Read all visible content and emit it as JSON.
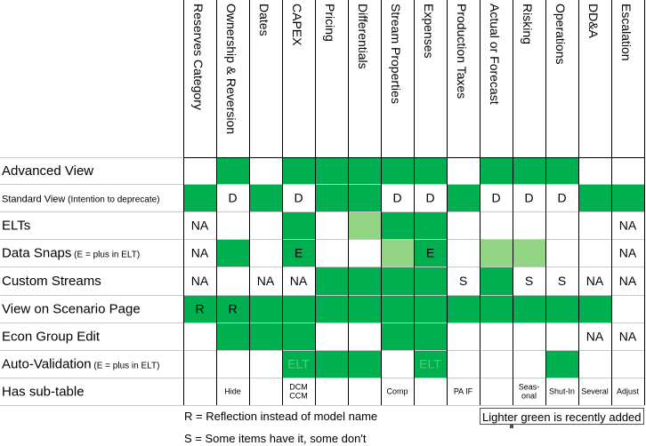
{
  "columns": [
    "Reserves Category",
    "Ownership & Reversion",
    "Dates",
    "CAPEX",
    "Pricing",
    "Differentials",
    "Stream Properties",
    "Expenses",
    "Production Taxes",
    "Actual or Forecast",
    "Risking",
    "Operations",
    "DD&A",
    "Escalation"
  ],
  "colors": {
    "green": "#00b050",
    "light_green": "#92d685",
    "white": "#ffffff",
    "ghost_text": "#5cc870"
  },
  "rows": [
    {
      "label": "Advanced View",
      "note": "",
      "cells": [
        {
          "f": "w",
          "t": ""
        },
        {
          "f": "g",
          "t": ""
        },
        {
          "f": "w",
          "t": ""
        },
        {
          "f": "g",
          "t": ""
        },
        {
          "f": "g",
          "t": ""
        },
        {
          "f": "g",
          "t": ""
        },
        {
          "f": "g",
          "t": ""
        },
        {
          "f": "g",
          "t": ""
        },
        {
          "f": "w",
          "t": ""
        },
        {
          "f": "g",
          "t": ""
        },
        {
          "f": "g",
          "t": ""
        },
        {
          "f": "g",
          "t": ""
        },
        {
          "f": "w",
          "t": ""
        },
        {
          "f": "w",
          "t": ""
        }
      ]
    },
    {
      "label": "Standard View",
      "note": "(Intention to deprecate)",
      "cells": [
        {
          "f": "g",
          "t": ""
        },
        {
          "f": "w",
          "t": "D"
        },
        {
          "f": "g",
          "t": ""
        },
        {
          "f": "w",
          "t": "D"
        },
        {
          "f": "g",
          "t": ""
        },
        {
          "f": "g",
          "t": ""
        },
        {
          "f": "w",
          "t": "D"
        },
        {
          "f": "w",
          "t": "D"
        },
        {
          "f": "g",
          "t": ""
        },
        {
          "f": "w",
          "t": "D"
        },
        {
          "f": "w",
          "t": "D"
        },
        {
          "f": "w",
          "t": "D"
        },
        {
          "f": "g",
          "t": ""
        },
        {
          "f": "g",
          "t": ""
        }
      ]
    },
    {
      "label": "ELTs",
      "note": "",
      "cells": [
        {
          "f": "w",
          "t": "NA"
        },
        {
          "f": "w",
          "t": ""
        },
        {
          "f": "w",
          "t": ""
        },
        {
          "f": "g",
          "t": ""
        },
        {
          "f": "w",
          "t": ""
        },
        {
          "f": "l",
          "t": ""
        },
        {
          "f": "g",
          "t": ""
        },
        {
          "f": "g",
          "t": ""
        },
        {
          "f": "w",
          "t": ""
        },
        {
          "f": "w",
          "t": ""
        },
        {
          "f": "w",
          "t": ""
        },
        {
          "f": "w",
          "t": ""
        },
        {
          "f": "w",
          "t": ""
        },
        {
          "f": "w",
          "t": "NA"
        }
      ]
    },
    {
      "label": "Data Snaps",
      "note": "(E = plus in ELT)",
      "cells": [
        {
          "f": "w",
          "t": "NA"
        },
        {
          "f": "g",
          "t": ""
        },
        {
          "f": "w",
          "t": ""
        },
        {
          "f": "g",
          "t": "E"
        },
        {
          "f": "w",
          "t": ""
        },
        {
          "f": "w",
          "t": ""
        },
        {
          "f": "l",
          "t": ""
        },
        {
          "f": "g",
          "t": "E"
        },
        {
          "f": "w",
          "t": ""
        },
        {
          "f": "l",
          "t": ""
        },
        {
          "f": "l",
          "t": ""
        },
        {
          "f": "w",
          "t": ""
        },
        {
          "f": "w",
          "t": ""
        },
        {
          "f": "w",
          "t": "NA"
        }
      ]
    },
    {
      "label": "Custom Streams",
      "note": "",
      "cells": [
        {
          "f": "w",
          "t": "NA"
        },
        {
          "f": "w",
          "t": ""
        },
        {
          "f": "w",
          "t": "NA"
        },
        {
          "f": "w",
          "t": "NA"
        },
        {
          "f": "g",
          "t": ""
        },
        {
          "f": "g",
          "t": ""
        },
        {
          "f": "g",
          "t": ""
        },
        {
          "f": "g",
          "t": ""
        },
        {
          "f": "w",
          "t": "S"
        },
        {
          "f": "g",
          "t": ""
        },
        {
          "f": "w",
          "t": "S"
        },
        {
          "f": "w",
          "t": "S"
        },
        {
          "f": "w",
          "t": "NA"
        },
        {
          "f": "w",
          "t": "NA"
        }
      ]
    },
    {
      "label": "View on Scenario Page",
      "note": "",
      "cells": [
        {
          "f": "g",
          "t": "R"
        },
        {
          "f": "g",
          "t": "R"
        },
        {
          "f": "g",
          "t": ""
        },
        {
          "f": "g",
          "t": ""
        },
        {
          "f": "g",
          "t": ""
        },
        {
          "f": "g",
          "t": ""
        },
        {
          "f": "g",
          "t": ""
        },
        {
          "f": "g",
          "t": ""
        },
        {
          "f": "g",
          "t": ""
        },
        {
          "f": "g",
          "t": ""
        },
        {
          "f": "g",
          "t": ""
        },
        {
          "f": "g",
          "t": ""
        },
        {
          "f": "g",
          "t": ""
        },
        {
          "f": "w",
          "t": ""
        }
      ]
    },
    {
      "label": "Econ Group Edit",
      "note": "",
      "cells": [
        {
          "f": "w",
          "t": ""
        },
        {
          "f": "g",
          "t": ""
        },
        {
          "f": "g",
          "t": ""
        },
        {
          "f": "g",
          "t": ""
        },
        {
          "f": "w",
          "t": ""
        },
        {
          "f": "w",
          "t": ""
        },
        {
          "f": "g",
          "t": ""
        },
        {
          "f": "g",
          "t": ""
        },
        {
          "f": "w",
          "t": ""
        },
        {
          "f": "w",
          "t": ""
        },
        {
          "f": "w",
          "t": ""
        },
        {
          "f": "w",
          "t": ""
        },
        {
          "f": "w",
          "t": "NA"
        },
        {
          "f": "w",
          "t": "NA"
        }
      ]
    },
    {
      "label": "Auto-Validation",
      "note": "(E = plus in ELT)",
      "cells": [
        {
          "f": "w",
          "t": ""
        },
        {
          "f": "w",
          "t": ""
        },
        {
          "f": "w",
          "t": ""
        },
        {
          "f": "g",
          "t": "ELT",
          "ghost": true
        },
        {
          "f": "g",
          "t": ""
        },
        {
          "f": "g",
          "t": ""
        },
        {
          "f": "w",
          "t": ""
        },
        {
          "f": "g",
          "t": "ELT",
          "ghost": true
        },
        {
          "f": "w",
          "t": ""
        },
        {
          "f": "w",
          "t": ""
        },
        {
          "f": "w",
          "t": ""
        },
        {
          "f": "g",
          "t": ""
        },
        {
          "f": "w",
          "t": ""
        },
        {
          "f": "w",
          "t": ""
        }
      ]
    },
    {
      "label": "Has sub-table",
      "note": "",
      "cells": [
        {
          "f": "w",
          "t": ""
        },
        {
          "f": "w",
          "t": "Hide",
          "small": true
        },
        {
          "f": "w",
          "t": ""
        },
        {
          "f": "w",
          "t": "DCM|CCM",
          "small": true
        },
        {
          "f": "w",
          "t": ""
        },
        {
          "f": "w",
          "t": ""
        },
        {
          "f": "w",
          "t": "Comp",
          "small": true
        },
        {
          "f": "w",
          "t": ""
        },
        {
          "f": "w",
          "t": "PA IF",
          "small": true
        },
        {
          "f": "w",
          "t": ""
        },
        {
          "f": "w",
          "t": "Seas-|onal",
          "small": true
        },
        {
          "f": "w",
          "t": "Shut-In",
          "small": true
        },
        {
          "f": "w",
          "t": "Several",
          "small": true
        },
        {
          "f": "w",
          "t": "Adjust",
          "small": true
        }
      ]
    }
  ],
  "footnotes": {
    "reflection": "R = Reflection instead of model name",
    "some_items": "S = Some items have it, some don't",
    "lighter_green": "Lighter green is recently added"
  }
}
